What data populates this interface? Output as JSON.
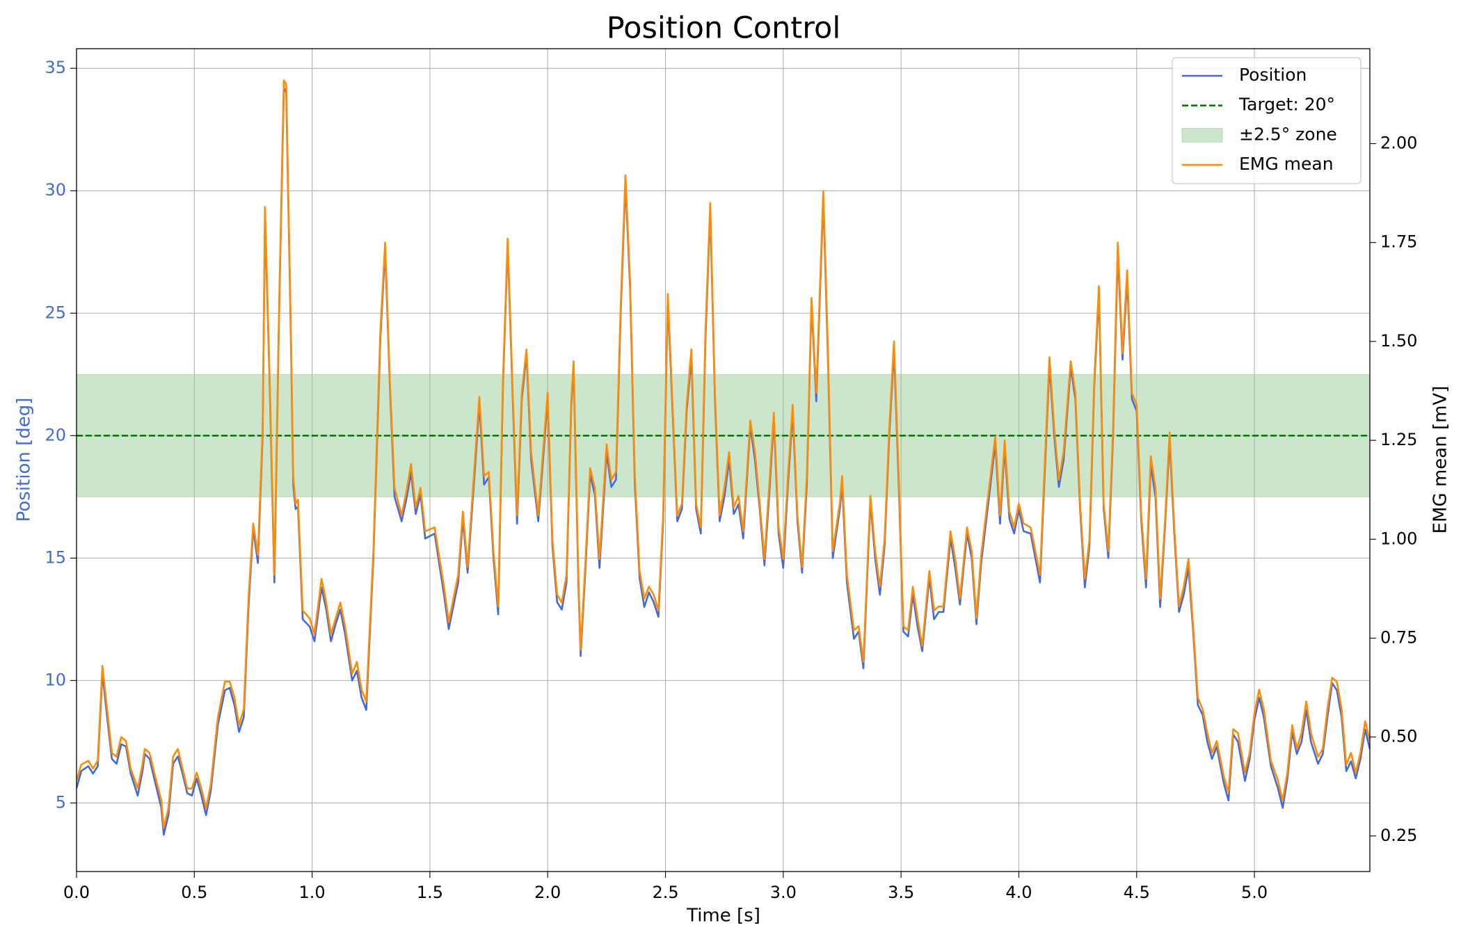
{
  "chart_data": {
    "type": "line",
    "title": "Position Control",
    "xlabel": "Time [s]",
    "ylabel": "Position [deg]",
    "y2label": "EMG mean [mV]",
    "x": [
      0,
      0.02,
      0.05,
      0.07,
      0.09,
      0.11,
      0.13,
      0.15,
      0.17,
      0.19,
      0.21,
      0.23,
      0.26,
      0.28,
      0.29,
      0.31,
      0.33,
      0.36,
      0.37,
      0.39,
      0.41,
      0.43,
      0.45,
      0.47,
      0.49,
      0.51,
      0.53,
      0.55,
      0.57,
      0.6,
      0.63,
      0.65,
      0.67,
      0.69,
      0.71,
      0.73,
      0.75,
      0.77,
      0.79,
      0.8,
      0.82,
      0.84,
      0.86,
      0.88,
      0.89,
      0.91,
      0.92,
      0.93,
      0.94,
      0.96,
      0.99,
      1.01,
      1.04,
      1.06,
      1.08,
      1.1,
      1.12,
      1.14,
      1.17,
      1.19,
      1.21,
      1.23,
      1.26,
      1.29,
      1.31,
      1.33,
      1.35,
      1.38,
      1.4,
      1.42,
      1.44,
      1.46,
      1.48,
      1.52,
      1.56,
      1.58,
      1.62,
      1.64,
      1.66,
      1.69,
      1.71,
      1.73,
      1.75,
      1.77,
      1.79,
      1.81,
      1.83,
      1.85,
      1.87,
      1.89,
      1.91,
      1.93,
      1.96,
      1.98,
      2.0,
      2.02,
      2.04,
      2.06,
      2.08,
      2.1,
      2.11,
      2.13,
      2.14,
      2.16,
      2.18,
      2.2,
      2.22,
      2.25,
      2.27,
      2.29,
      2.31,
      2.33,
      2.35,
      2.37,
      2.39,
      2.41,
      2.43,
      2.45,
      2.47,
      2.49,
      2.51,
      2.53,
      2.55,
      2.57,
      2.59,
      2.61,
      2.63,
      2.65,
      2.67,
      2.69,
      2.71,
      2.73,
      2.75,
      2.77,
      2.79,
      2.81,
      2.83,
      2.86,
      2.88,
      2.9,
      2.92,
      2.94,
      2.96,
      2.98,
      3.0,
      3.02,
      3.04,
      3.06,
      3.08,
      3.1,
      3.12,
      3.14,
      3.17,
      3.19,
      3.21,
      3.24,
      3.25,
      3.27,
      3.3,
      3.32,
      3.34,
      3.37,
      3.39,
      3.41,
      3.43,
      3.45,
      3.47,
      3.49,
      3.51,
      3.53,
      3.55,
      3.57,
      3.59,
      3.62,
      3.64,
      3.66,
      3.68,
      3.71,
      3.73,
      3.75,
      3.78,
      3.8,
      3.82,
      3.84,
      3.87,
      3.9,
      3.92,
      3.94,
      3.96,
      3.98,
      4.0,
      4.02,
      4.05,
      4.07,
      4.09,
      4.11,
      4.13,
      4.15,
      4.17,
      4.19,
      4.22,
      4.24,
      4.26,
      4.28,
      4.3,
      4.32,
      4.34,
      4.36,
      4.38,
      4.4,
      4.42,
      4.44,
      4.46,
      4.48,
      4.5,
      4.52,
      4.54,
      4.56,
      4.58,
      4.6,
      4.62,
      4.64,
      4.66,
      4.68,
      4.7,
      4.72,
      4.74,
      4.76,
      4.78,
      4.8,
      4.82,
      4.84,
      4.87,
      4.89,
      4.91,
      4.93,
      4.96,
      4.98,
      5.0,
      5.02,
      5.04,
      5.07,
      5.1,
      5.12,
      5.14,
      5.16,
      5.18,
      5.2,
      5.22,
      5.24,
      5.27,
      5.29,
      5.31,
      5.33,
      5.35,
      5.37,
      5.39,
      5.41,
      5.43,
      5.45,
      5.47,
      5.49
    ],
    "series": [
      {
        "name": "Position",
        "color": "#4169e1",
        "values": [
          5.6,
          6.3,
          6.5,
          6.2,
          6.5,
          10.3,
          8.5,
          6.8,
          6.6,
          7.4,
          7.3,
          6.2,
          5.3,
          6.3,
          7.0,
          6.8,
          6.0,
          4.8,
          3.7,
          4.5,
          6.6,
          6.9,
          6.2,
          5.4,
          5.3,
          6.0,
          5.3,
          4.5,
          5.5,
          8.2,
          9.6,
          9.7,
          9.0,
          7.9,
          8.5,
          13.0,
          16.2,
          14.8,
          20.0,
          29.0,
          22.0,
          14.0,
          25.0,
          34.2,
          34.0,
          24.0,
          18.0,
          17.0,
          17.1,
          12.5,
          12.2,
          11.6,
          13.8,
          12.9,
          11.6,
          12.3,
          12.9,
          11.9,
          10.0,
          10.4,
          9.3,
          8.8,
          15.0,
          24.0,
          27.6,
          22.0,
          17.5,
          16.5,
          17.4,
          18.5,
          16.8,
          17.6,
          15.8,
          16.0,
          13.5,
          12.1,
          14.0,
          16.6,
          14.4,
          18.5,
          21.3,
          18.0,
          18.3,
          15.0,
          12.7,
          22.0,
          27.8,
          22.0,
          16.4,
          21.5,
          23.3,
          19.0,
          16.5,
          19.0,
          21.5,
          15.5,
          13.2,
          12.9,
          14.0,
          21.2,
          22.8,
          14.0,
          11.0,
          14.5,
          18.4,
          17.6,
          14.6,
          19.3,
          17.9,
          18.2,
          25.0,
          30.3,
          26.0,
          18.0,
          14.2,
          13.0,
          13.6,
          13.2,
          12.6,
          16.5,
          25.5,
          21.0,
          16.5,
          17.0,
          21.0,
          23.2,
          17.0,
          16.0,
          24.0,
          29.2,
          21.5,
          16.5,
          17.5,
          19.0,
          16.8,
          17.2,
          15.8,
          20.4,
          19.0,
          17.0,
          14.7,
          17.5,
          20.7,
          16.0,
          14.6,
          18.0,
          21.0,
          16.5,
          14.4,
          18.0,
          25.4,
          21.4,
          29.7,
          23.0,
          15.0,
          17.0,
          18.0,
          14.0,
          11.7,
          12.0,
          10.5,
          17.3,
          15.0,
          13.5,
          15.5,
          20.0,
          23.5,
          18.0,
          12.0,
          11.8,
          13.5,
          12.2,
          11.2,
          14.2,
          12.5,
          12.8,
          12.8,
          15.8,
          14.6,
          13.1,
          16.0,
          15.0,
          12.3,
          14.8,
          17.2,
          19.7,
          16.4,
          19.5,
          16.6,
          16.0,
          17.0,
          16.1,
          16.0,
          15.0,
          14.0,
          18.5,
          22.9,
          20.0,
          17.9,
          19.0,
          22.8,
          21.5,
          17.0,
          13.8,
          15.5,
          22.0,
          25.8,
          17.0,
          15.0,
          20.0,
          27.5,
          23.1,
          26.4,
          21.5,
          21.0,
          16.5,
          13.8,
          18.8,
          17.5,
          13.0,
          16.2,
          19.8,
          16.0,
          12.8,
          13.5,
          14.6,
          12.0,
          9.0,
          8.6,
          7.5,
          6.8,
          7.3,
          5.8,
          5.1,
          7.8,
          7.5,
          5.9,
          6.8,
          8.4,
          9.3,
          8.5,
          6.5,
          5.6,
          4.8,
          6.0,
          7.9,
          7.0,
          7.5,
          8.8,
          7.5,
          6.6,
          7.0,
          8.5,
          9.9,
          9.6,
          8.5,
          6.3,
          6.7,
          6.0,
          6.8,
          8.0,
          7.2
        ]
      },
      {
        "name": "EMG mean",
        "color": "#ff8c00",
        "axis": "y2",
        "values": [
          0.39,
          0.43,
          0.44,
          0.42,
          0.44,
          0.68,
          0.57,
          0.46,
          0.45,
          0.5,
          0.49,
          0.42,
          0.37,
          0.43,
          0.47,
          0.46,
          0.41,
          0.34,
          0.27,
          0.32,
          0.45,
          0.47,
          0.42,
          0.37,
          0.37,
          0.41,
          0.37,
          0.32,
          0.38,
          0.55,
          0.64,
          0.64,
          0.6,
          0.53,
          0.57,
          0.85,
          1.04,
          0.96,
          1.28,
          1.84,
          1.4,
          0.91,
          1.59,
          2.16,
          2.15,
          1.53,
          1.16,
          1.09,
          1.1,
          0.82,
          0.8,
          0.76,
          0.9,
          0.84,
          0.76,
          0.8,
          0.84,
          0.78,
          0.66,
          0.69,
          0.62,
          0.59,
          0.97,
          1.53,
          1.75,
          1.4,
          1.13,
          1.06,
          1.12,
          1.19,
          1.08,
          1.13,
          1.02,
          1.03,
          0.88,
          0.79,
          0.91,
          1.07,
          0.93,
          1.19,
          1.36,
          1.16,
          1.17,
          0.97,
          0.83,
          1.4,
          1.76,
          1.4,
          1.06,
          1.37,
          1.48,
          1.22,
          1.06,
          1.22,
          1.37,
          1.0,
          0.86,
          0.84,
          0.91,
          1.35,
          1.45,
          0.91,
          0.72,
          0.94,
          1.18,
          1.13,
          0.95,
          1.24,
          1.15,
          1.17,
          1.59,
          1.92,
          1.65,
          1.16,
          0.92,
          0.85,
          0.88,
          0.86,
          0.82,
          1.06,
          1.62,
          1.34,
          1.06,
          1.09,
          1.34,
          1.48,
          1.09,
          1.03,
          1.53,
          1.85,
          1.37,
          1.06,
          1.13,
          1.22,
          1.08,
          1.11,
          1.02,
          1.3,
          1.22,
          1.09,
          0.95,
          1.13,
          1.32,
          1.03,
          0.95,
          1.16,
          1.34,
          1.06,
          0.93,
          1.16,
          1.61,
          1.37,
          1.88,
          1.47,
          0.97,
          1.09,
          1.16,
          0.91,
          0.77,
          0.78,
          0.69,
          1.11,
          0.97,
          0.88,
          1.0,
          1.28,
          1.5,
          1.16,
          0.78,
          0.77,
          0.88,
          0.8,
          0.73,
          0.92,
          0.82,
          0.83,
          0.83,
          1.02,
          0.95,
          0.85,
          1.03,
          0.97,
          0.8,
          0.96,
          1.11,
          1.26,
          1.06,
          1.25,
          1.07,
          1.03,
          1.09,
          1.04,
          1.03,
          0.97,
          0.91,
          1.19,
          1.46,
          1.28,
          1.15,
          1.22,
          1.45,
          1.37,
          1.09,
          0.9,
          1.0,
          1.4,
          1.64,
          1.09,
          0.97,
          1.28,
          1.75,
          1.47,
          1.68,
          1.37,
          1.34,
          1.06,
          0.9,
          1.21,
          1.13,
          0.85,
          1.04,
          1.27,
          1.03,
          0.83,
          0.88,
          0.95,
          0.78,
          0.6,
          0.57,
          0.51,
          0.46,
          0.49,
          0.4,
          0.36,
          0.52,
          0.51,
          0.41,
          0.46,
          0.56,
          0.62,
          0.57,
          0.44,
          0.39,
          0.34,
          0.41,
          0.53,
          0.47,
          0.51,
          0.59,
          0.51,
          0.45,
          0.47,
          0.57,
          0.65,
          0.64,
          0.57,
          0.43,
          0.46,
          0.41,
          0.46,
          0.54,
          0.49
        ]
      }
    ],
    "target": {
      "name": "Target: 20°",
      "value": 20,
      "color": "#008000"
    },
    "band": {
      "name": "±2.5° zone",
      "range": [
        17.5,
        22.5
      ],
      "color": "#008000"
    },
    "xlim": [
      0,
      5.49
    ],
    "xticks": [
      {
        "value": 0,
        "label": "0.0"
      },
      0.5,
      {
        "value": 1,
        "label": "1.0"
      },
      1.5,
      {
        "value": 2,
        "label": "2.0"
      },
      2.5,
      {
        "value": 3,
        "label": "3.0"
      },
      3.5,
      {
        "value": 4,
        "label": "4.0"
      },
      4.5,
      {
        "value": 5,
        "label": "5.0"
      }
    ],
    "ylim": [
      2.2,
      35.8
    ],
    "yticks": [
      5,
      10,
      15,
      20,
      25,
      30,
      35
    ],
    "y2lim": [
      0.16,
      2.24
    ],
    "y2ticks": [
      0.25,
      {
        "value": 0.5,
        "label": "0.50"
      },
      0.75,
      {
        "value": 1,
        "label": "1.00"
      },
      1.25,
      {
        "value": 1.5,
        "label": "1.50"
      },
      1.75,
      {
        "value": 2,
        "label": "2.00"
      }
    ],
    "grid": true,
    "legend": "upper right"
  }
}
